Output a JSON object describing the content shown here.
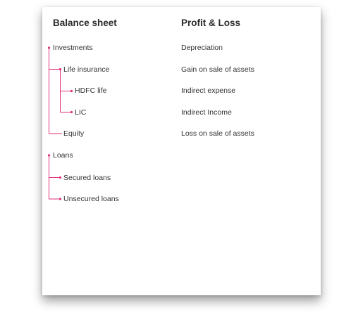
{
  "balance_sheet": {
    "title": "Balance sheet",
    "items": [
      {
        "label": "Investments",
        "level": 0
      },
      {
        "label": "Life insurance",
        "level": 1
      },
      {
        "label": "HDFC life",
        "level": 2
      },
      {
        "label": "LIC",
        "level": 2
      },
      {
        "label": "Equity",
        "level": 1
      },
      {
        "label": "Loans",
        "level": 0
      },
      {
        "label": "Secured loans",
        "level": 1
      },
      {
        "label": "Unsecured loans",
        "level": 1
      }
    ]
  },
  "profit_loss": {
    "title": "Profit & Loss",
    "items": [
      {
        "label": "Depreciation"
      },
      {
        "label": "Gain on sale of assets"
      },
      {
        "label": "Indirect expense"
      },
      {
        "label": "Indirect Income"
      },
      {
        "label": "Loss on sale of assets"
      }
    ]
  },
  "colors": {
    "connector": "#e2307a",
    "text": "#333333",
    "header": "#2a2a2a"
  }
}
